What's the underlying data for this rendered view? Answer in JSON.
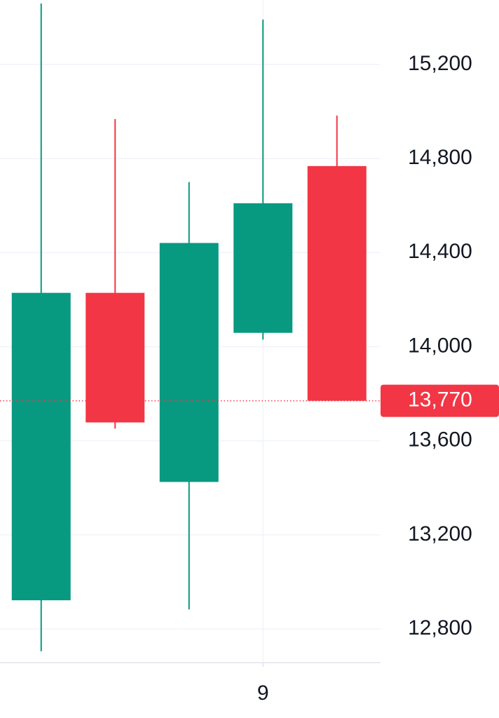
{
  "chart_data": {
    "type": "candlestick",
    "categories": [
      null,
      null,
      null,
      "9",
      null
    ],
    "series": [
      {
        "up_color": "#089981",
        "down_color": "#f23645",
        "open": [
          12922,
          14229,
          13425,
          14059,
          14768
        ],
        "high": [
          15459,
          14968,
          14700,
          15391,
          14983
        ],
        "low": [
          12705,
          13652,
          12883,
          14030,
          13770
        ],
        "close": [
          14229,
          13678,
          14441,
          14610,
          13770
        ]
      }
    ],
    "ylim": [
      12657,
      15474
    ],
    "yticks": [
      {
        "value": 12800,
        "label": "12,800"
      },
      {
        "value": 13200,
        "label": "13,200"
      },
      {
        "value": 13600,
        "label": "13,600"
      },
      {
        "value": 14000,
        "label": "14,000"
      },
      {
        "value": 14400,
        "label": "14,400"
      },
      {
        "value": 14800,
        "label": "14,800"
      },
      {
        "value": 15200,
        "label": "15,200"
      }
    ],
    "last_price": {
      "value": 13770,
      "label": "13,770",
      "color": "#f23645"
    },
    "grid": true
  }
}
